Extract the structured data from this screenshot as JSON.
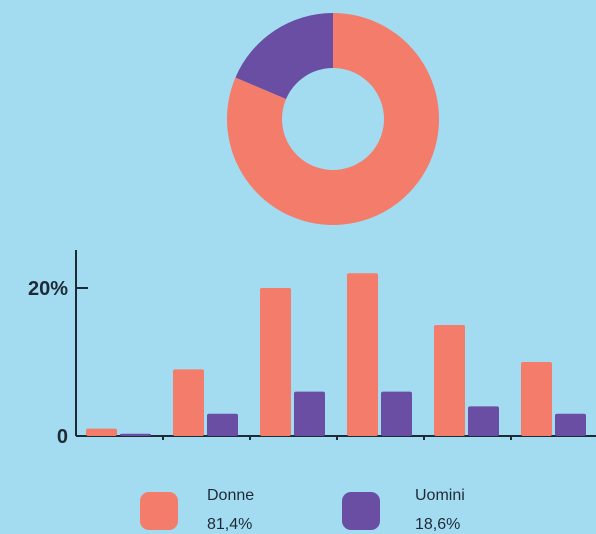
{
  "chart_data": [
    {
      "type": "pie",
      "variant": "donut",
      "slices": [
        {
          "name": "Donne",
          "value": 81.4,
          "color": "#f47c6b"
        },
        {
          "name": "Uomini",
          "value": 18.6,
          "color": "#6a4ea3"
        }
      ]
    },
    {
      "type": "bar",
      "categories": [
        "",
        "",
        "",
        "",
        "",
        ""
      ],
      "series": [
        {
          "name": "Donne",
          "color": "#f47c6b",
          "values": [
            1,
            9,
            20,
            22,
            15,
            10
          ]
        },
        {
          "name": "Uomini",
          "color": "#6a4ea3",
          "values": [
            0.3,
            3,
            6,
            6,
            4,
            3
          ]
        }
      ],
      "yticks": [
        {
          "value": 0,
          "label": "0"
        },
        {
          "value": 20,
          "label": "20%"
        }
      ],
      "ylim": [
        0,
        25
      ],
      "grid": false,
      "legend_position": "bottom"
    }
  ],
  "legend": {
    "items": [
      {
        "name": "Donne",
        "pct": "81,4%",
        "color": "#f47c6b"
      },
      {
        "name": "Uomini",
        "pct": "18,6%",
        "color": "#6a4ea3"
      }
    ]
  }
}
